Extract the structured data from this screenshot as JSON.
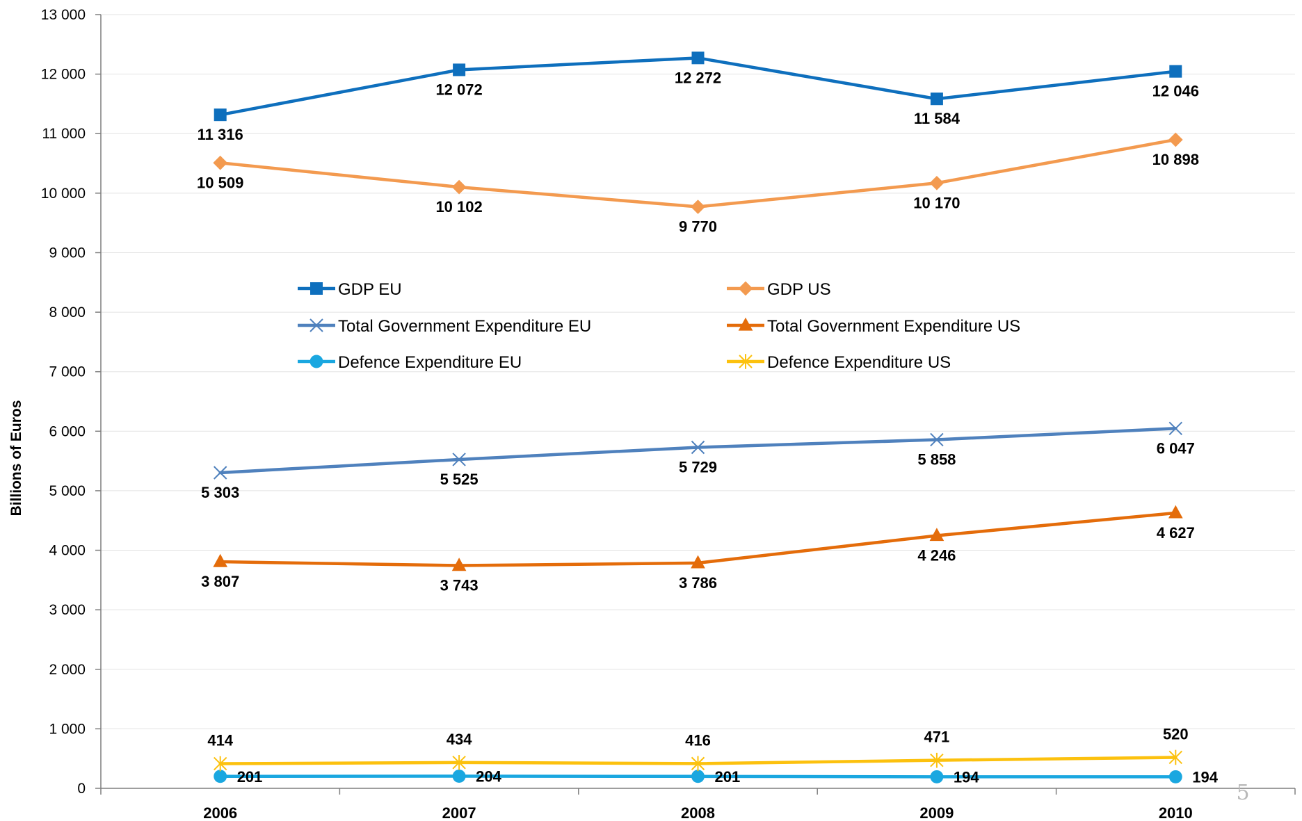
{
  "chart_data": {
    "type": "line",
    "title": "",
    "xlabel": "",
    "ylabel": "Billions of Euros",
    "categories": [
      "2006",
      "2007",
      "2008",
      "2009",
      "2010"
    ],
    "ylim": [
      0,
      13000
    ],
    "y_ticks": [
      {
        "value": 0,
        "label": "0"
      },
      {
        "value": 1000,
        "label": "1 000"
      },
      {
        "value": 2000,
        "label": "2 000"
      },
      {
        "value": 3000,
        "label": "3 000"
      },
      {
        "value": 4000,
        "label": "4 000"
      },
      {
        "value": 5000,
        "label": "5 000"
      },
      {
        "value": 6000,
        "label": "6 000"
      },
      {
        "value": 7000,
        "label": "7 000"
      },
      {
        "value": 8000,
        "label": "8 000"
      },
      {
        "value": 9000,
        "label": "9 000"
      },
      {
        "value": 10000,
        "label": "10 000"
      },
      {
        "value": 11000,
        "label": "11 000"
      },
      {
        "value": 12000,
        "label": "12 000"
      },
      {
        "value": 13000,
        "label": "13 000"
      }
    ],
    "grid": true,
    "legend_position": "center",
    "series": [
      {
        "name": "GDP EU",
        "color": "#0e6fbd",
        "marker": "square",
        "values": [
          11316,
          12072,
          12272,
          11584,
          12046
        ],
        "labels": [
          "11 316",
          "12 072",
          "12 272",
          "11 584",
          "12 046"
        ],
        "label_position": "below"
      },
      {
        "name": "GDP US",
        "color": "#f39a4f",
        "marker": "diamond",
        "values": [
          10509,
          10102,
          9770,
          10170,
          10898
        ],
        "labels": [
          "10 509",
          "10 102",
          "9 770",
          "10 170",
          "10 898"
        ],
        "label_position": "below"
      },
      {
        "name": "Total Government Expenditure EU",
        "color": "#4f81bd",
        "marker": "x",
        "values": [
          5303,
          5525,
          5729,
          5858,
          6047
        ],
        "labels": [
          "5 303",
          "5 525",
          "5 729",
          "5 858",
          "6 047"
        ],
        "label_position": "below"
      },
      {
        "name": "Total Government Expenditure US",
        "color": "#e46c0a",
        "marker": "triangle",
        "values": [
          3807,
          3743,
          3786,
          4246,
          4627
        ],
        "labels": [
          "3 807",
          "3 743",
          "3 786",
          "4 246",
          "4 627"
        ],
        "label_position": "below"
      },
      {
        "name": "Defence Expenditure EU",
        "color": "#1aa7e0",
        "marker": "circle",
        "values": [
          201,
          204,
          201,
          194,
          194
        ],
        "labels": [
          "201",
          "204",
          "201",
          "194",
          "194"
        ],
        "label_position": "right"
      },
      {
        "name": "Defence Expenditure US",
        "color": "#fcc10e",
        "marker": "star",
        "values": [
          414,
          434,
          416,
          471,
          520
        ],
        "labels": [
          "414",
          "434",
          "416",
          "471",
          "520"
        ],
        "label_position": "above"
      }
    ]
  },
  "page_number": "5"
}
